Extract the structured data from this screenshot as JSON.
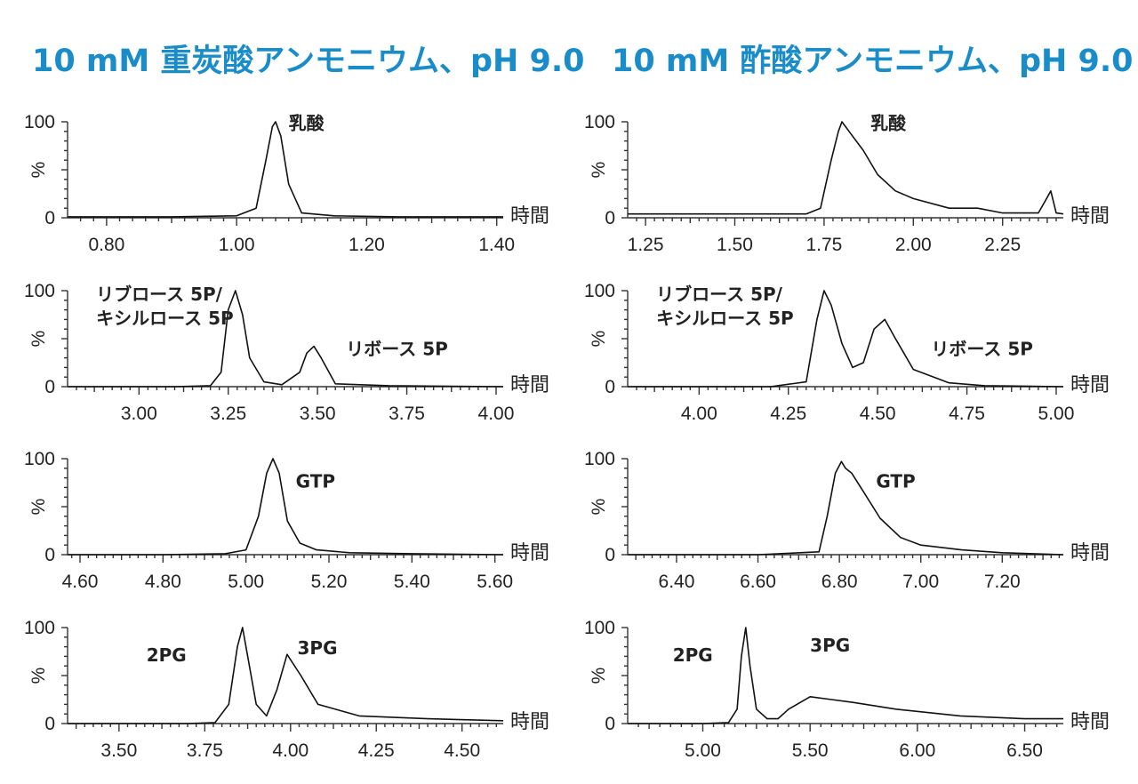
{
  "colors": {
    "title": "#1a8dc9",
    "trace": "#111111",
    "axis": "#333333"
  },
  "titles": [
    "10 mM 重炭酸アンモニウム、pH 9.0",
    "10 mM 酢酸アンモニウム、pH 9.0"
  ],
  "chart_data": [
    {
      "type": "line",
      "x_unit": "時間",
      "y_label": "%",
      "xlim": [
        0.74,
        1.41
      ],
      "ylim": [
        0,
        100
      ],
      "yticks": [
        0,
        100
      ],
      "xticks": [
        0.8,
        1.0,
        1.2,
        1.4
      ],
      "tick_decimals": 2,
      "annotations": [
        {
          "text": "乳酸",
          "x": 1.08,
          "y": 92
        }
      ],
      "series": [
        {
          "x": [
            0.74,
            0.8,
            0.9,
            1.0,
            1.03,
            1.045,
            1.055,
            1.06,
            1.068,
            1.08,
            1.1,
            1.15,
            1.25,
            1.41
          ],
          "y": [
            1,
            1,
            1,
            2,
            10,
            60,
            95,
            100,
            85,
            35,
            5,
            2,
            1,
            1
          ]
        }
      ]
    },
    {
      "type": "line",
      "x_unit": "時間",
      "y_label": "%",
      "xlim": [
        1.2,
        2.42
      ],
      "ylim": [
        0,
        100
      ],
      "yticks": [
        0,
        100
      ],
      "xticks": [
        1.25,
        1.5,
        1.75,
        2.0,
        2.25
      ],
      "tick_decimals": 2,
      "annotations": [
        {
          "text": "乳酸",
          "x": 1.88,
          "y": 92
        }
      ],
      "series": [
        {
          "x": [
            1.2,
            1.4,
            1.6,
            1.7,
            1.74,
            1.77,
            1.79,
            1.8,
            1.82,
            1.86,
            1.9,
            1.95,
            2.0,
            2.1,
            2.18,
            2.25,
            2.35,
            2.37,
            2.385,
            2.4,
            2.42
          ],
          "y": [
            4,
            4,
            4,
            4,
            10,
            60,
            90,
            100,
            90,
            70,
            45,
            28,
            20,
            10,
            10,
            5,
            5,
            18,
            28,
            5,
            4
          ]
        }
      ]
    },
    {
      "type": "line",
      "x_unit": "時間",
      "y_label": "%",
      "xlim": [
        2.8,
        4.02
      ],
      "ylim": [
        0,
        100
      ],
      "yticks": [
        0,
        100
      ],
      "xticks": [
        3.0,
        3.25,
        3.5,
        3.75,
        4.0
      ],
      "tick_decimals": 2,
      "annotations": [
        {
          "text": "リブロース 5P/",
          "x": 2.88,
          "y": 90
        },
        {
          "text": "キシルロース 5P",
          "x": 2.88,
          "y": 65
        },
        {
          "text": "リボース 5P",
          "x": 3.58,
          "y": 33
        }
      ],
      "series": [
        {
          "x": [
            2.8,
            3.1,
            3.2,
            3.23,
            3.25,
            3.27,
            3.29,
            3.31,
            3.35,
            3.4,
            3.45,
            3.47,
            3.49,
            3.51,
            3.55,
            3.7,
            4.02
          ],
          "y": [
            0,
            0,
            1,
            15,
            80,
            100,
            75,
            30,
            5,
            2,
            15,
            35,
            42,
            30,
            3,
            1,
            0
          ]
        }
      ]
    },
    {
      "type": "line",
      "x_unit": "時間",
      "y_label": "%",
      "xlim": [
        3.8,
        5.02
      ],
      "ylim": [
        0,
        100
      ],
      "yticks": [
        0,
        100
      ],
      "xticks": [
        4.0,
        4.25,
        4.5,
        4.75,
        5.0
      ],
      "tick_decimals": 2,
      "annotations": [
        {
          "text": "リブロース 5P/",
          "x": 3.88,
          "y": 90
        },
        {
          "text": "キシルロース 5P",
          "x": 3.88,
          "y": 65
        },
        {
          "text": "リボース 5P",
          "x": 4.65,
          "y": 33
        }
      ],
      "series": [
        {
          "x": [
            3.8,
            4.2,
            4.3,
            4.33,
            4.35,
            4.37,
            4.4,
            4.43,
            4.46,
            4.49,
            4.52,
            4.55,
            4.6,
            4.7,
            4.8,
            5.02
          ],
          "y": [
            0,
            0,
            5,
            70,
            100,
            85,
            45,
            20,
            25,
            60,
            70,
            50,
            18,
            4,
            1,
            0
          ]
        }
      ]
    },
    {
      "type": "line",
      "x_unit": "時間",
      "y_label": "%",
      "xlim": [
        4.57,
        5.62
      ],
      "ylim": [
        0,
        100
      ],
      "yticks": [
        0,
        100
      ],
      "xticks": [
        4.6,
        4.8,
        5.0,
        5.2,
        5.4,
        5.6
      ],
      "tick_decimals": 2,
      "annotations": [
        {
          "text": "GTP",
          "x": 5.12,
          "y": 70
        }
      ],
      "series": [
        {
          "x": [
            4.57,
            4.8,
            4.95,
            5.0,
            5.03,
            5.05,
            5.065,
            5.08,
            5.1,
            5.13,
            5.17,
            5.25,
            5.4,
            5.62
          ],
          "y": [
            0,
            0,
            1,
            5,
            40,
            85,
            100,
            85,
            35,
            12,
            5,
            2,
            1,
            0
          ]
        }
      ]
    },
    {
      "type": "line",
      "x_unit": "時間",
      "y_label": "%",
      "xlim": [
        6.28,
        7.35
      ],
      "ylim": [
        0,
        100
      ],
      "yticks": [
        0,
        100
      ],
      "xticks": [
        6.4,
        6.6,
        6.8,
        7.0,
        7.2
      ],
      "tick_decimals": 2,
      "annotations": [
        {
          "text": "GTP",
          "x": 6.89,
          "y": 70
        }
      ],
      "series": [
        {
          "x": [
            6.28,
            6.6,
            6.75,
            6.77,
            6.79,
            6.805,
            6.815,
            6.83,
            6.86,
            6.9,
            6.95,
            7.0,
            7.1,
            7.2,
            7.35
          ],
          "y": [
            0,
            0,
            3,
            40,
            85,
            97,
            90,
            85,
            65,
            38,
            18,
            10,
            5,
            2,
            0
          ]
        }
      ]
    },
    {
      "type": "line",
      "x_unit": "時間",
      "y_label": "%",
      "xlim": [
        3.35,
        4.62
      ],
      "ylim": [
        0,
        100
      ],
      "yticks": [
        0,
        100
      ],
      "xticks": [
        3.5,
        3.75,
        4.0,
        4.25,
        4.5
      ],
      "tick_decimals": 2,
      "annotations": [
        {
          "text": "2PG",
          "x": 3.58,
          "y": 65
        },
        {
          "text": "3PG",
          "x": 4.02,
          "y": 72
        }
      ],
      "series": [
        {
          "x": [
            3.35,
            3.7,
            3.78,
            3.82,
            3.845,
            3.86,
            3.875,
            3.9,
            3.93,
            3.96,
            3.99,
            4.03,
            4.08,
            4.2,
            4.4,
            4.62
          ],
          "y": [
            0,
            0,
            1,
            20,
            80,
            100,
            70,
            20,
            8,
            35,
            72,
            50,
            20,
            8,
            5,
            3
          ]
        }
      ]
    },
    {
      "type": "line",
      "x_unit": "時間",
      "y_label": "%",
      "xlim": [
        4.65,
        6.68
      ],
      "ylim": [
        0,
        100
      ],
      "yticks": [
        0,
        100
      ],
      "xticks": [
        5.0,
        5.5,
        6.0,
        6.5
      ],
      "tick_decimals": 2,
      "annotations": [
        {
          "text": "2PG",
          "x": 4.86,
          "y": 65
        },
        {
          "text": "3PG",
          "x": 5.5,
          "y": 75
        }
      ],
      "series": [
        {
          "x": [
            4.65,
            5.0,
            5.12,
            5.16,
            5.18,
            5.2,
            5.22,
            5.25,
            5.3,
            5.35,
            5.4,
            5.5,
            5.6,
            5.7,
            5.9,
            6.2,
            6.5,
            6.68
          ],
          "y": [
            0,
            0,
            1,
            15,
            70,
            100,
            60,
            15,
            5,
            5,
            15,
            28,
            25,
            22,
            15,
            8,
            5,
            5
          ]
        }
      ]
    }
  ]
}
